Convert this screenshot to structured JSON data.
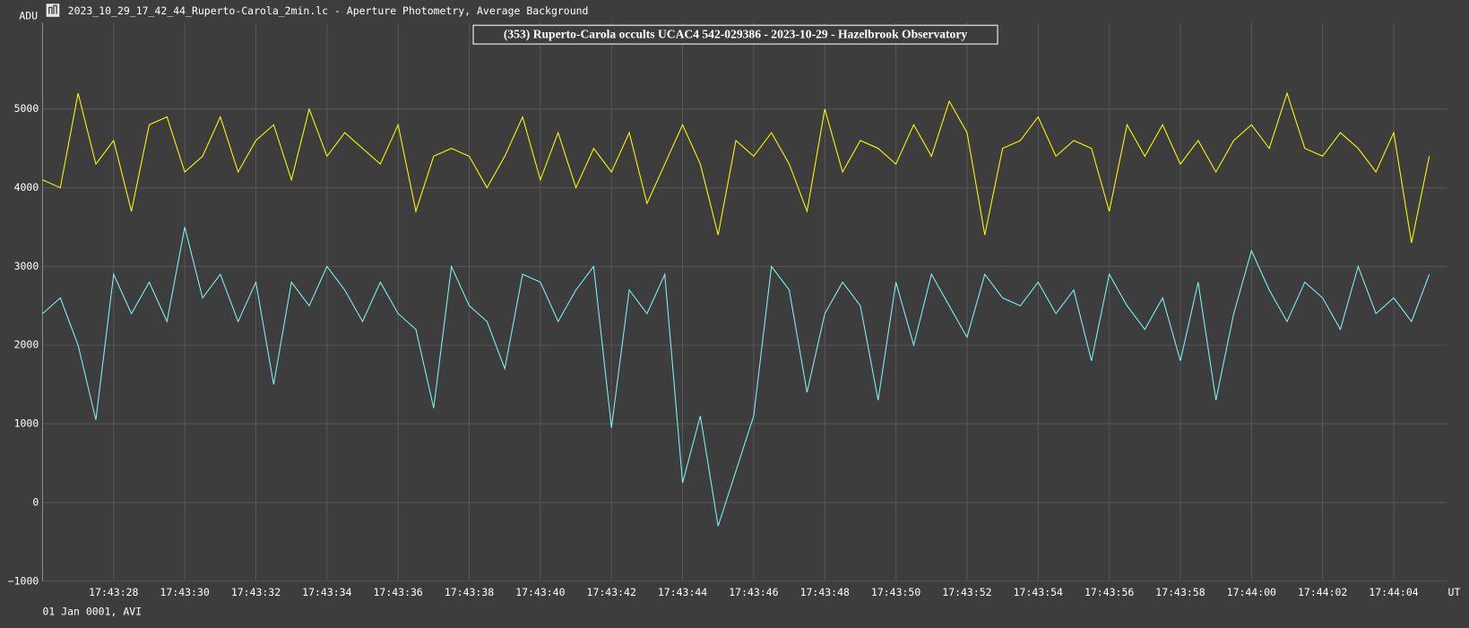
{
  "window_title": "2023_10_29_17_42_44_Ruperto-Carola_2min.lc - Aperture Photometry, Average Background",
  "footer": "01 Jan 0001, AVI",
  "chart_data": {
    "type": "line",
    "title": "(353) Ruperto-Carola occults UCAC4 542-029386 - 2023-10-29 - Hazelbrook Observatory",
    "y_label": "ADU",
    "x_label": "UT",
    "grid": true,
    "xlim": [
      26,
      65.5
    ],
    "ylim": [
      -1000,
      6100
    ],
    "yticks": [
      {
        "value": -1000,
        "label": "−1000"
      },
      0,
      1000,
      2000,
      3000,
      4000,
      5000
    ],
    "xticks": [
      {
        "value": 28,
        "label": "17:43:28"
      },
      {
        "value": 30,
        "label": "17:43:30"
      },
      {
        "value": 32,
        "label": "17:43:32"
      },
      {
        "value": 34,
        "label": "17:43:34"
      },
      {
        "value": 36,
        "label": "17:43:36"
      },
      {
        "value": 38,
        "label": "17:43:38"
      },
      {
        "value": 40,
        "label": "17:43:40"
      },
      {
        "value": 42,
        "label": "17:43:42"
      },
      {
        "value": 44,
        "label": "17:43:44"
      },
      {
        "value": 46,
        "label": "17:43:46"
      },
      {
        "value": 48,
        "label": "17:43:48"
      },
      {
        "value": 50,
        "label": "17:43:50"
      },
      {
        "value": 52,
        "label": "17:43:52"
      },
      {
        "value": 54,
        "label": "17:43:54"
      },
      {
        "value": 56,
        "label": "17:43:56"
      },
      {
        "value": 58,
        "label": "17:43:58"
      },
      {
        "value": 60,
        "label": "17:44:00"
      },
      {
        "value": 62,
        "label": "17:44:02"
      },
      {
        "value": 64,
        "label": "17:44:04"
      }
    ],
    "x": [
      26,
      26.5,
      27,
      27.5,
      28,
      28.5,
      29,
      29.5,
      30,
      30.5,
      31,
      31.5,
      32,
      32.5,
      33,
      33.5,
      34,
      34.5,
      35,
      35.5,
      36,
      36.5,
      37,
      37.5,
      38,
      38.5,
      39,
      39.5,
      40,
      40.5,
      41,
      41.5,
      42,
      42.5,
      43,
      43.5,
      44,
      44.5,
      45,
      45.5,
      46,
      46.5,
      47,
      47.5,
      48,
      48.5,
      49,
      49.5,
      50,
      50.5,
      51,
      51.5,
      52,
      52.5,
      53,
      53.5,
      54,
      54.5,
      55,
      55.5,
      56,
      56.5,
      57,
      57.5,
      58,
      58.5,
      59,
      59.5,
      60,
      60.5,
      61,
      61.5,
      62,
      62.5,
      63,
      63.5,
      64,
      64.5,
      65
    ],
    "series": [
      {
        "color": "#ffff00",
        "values": [
          4100,
          4000,
          5200,
          4300,
          4600,
          3700,
          4800,
          4900,
          4200,
          4400,
          4900,
          4200,
          4600,
          4800,
          4100,
          5000,
          4400,
          4700,
          4500,
          4300,
          4800,
          3700,
          4400,
          4500,
          4400,
          4000,
          4400,
          4900,
          4100,
          4700,
          4000,
          4500,
          4200,
          4700,
          3800,
          4300,
          4800,
          4300,
          3400,
          4600,
          4400,
          4700,
          4300,
          3700,
          5000,
          4200,
          4600,
          4500,
          4300,
          4800,
          4400,
          5100,
          4700,
          3400,
          4500,
          4600,
          4900,
          4400,
          4600,
          4500,
          3700,
          4800,
          4400,
          4800,
          4300,
          4600,
          4200,
          4600,
          4800,
          4500,
          5200,
          4500,
          4400,
          4700,
          4500,
          4200,
          4700,
          3300,
          4400
        ]
      },
      {
        "color": "#7ff5f5",
        "values": [
          2400,
          2600,
          2000,
          1050,
          2900,
          2400,
          2800,
          2300,
          3500,
          2600,
          2900,
          2300,
          2800,
          1500,
          2800,
          2500,
          3000,
          2700,
          2300,
          2800,
          2400,
          2200,
          1200,
          3000,
          2500,
          2300,
          1700,
          2900,
          2800,
          2300,
          2700,
          3000,
          950,
          2700,
          2400,
          2900,
          250,
          1100,
          -300,
          400,
          1100,
          3000,
          2700,
          1400,
          2400,
          2800,
          2500,
          1300,
          2800,
          2000,
          2900,
          2500,
          2100,
          2900,
          2600,
          2500,
          2800,
          2400,
          2700,
          1800,
          2900,
          2500,
          2200,
          2600,
          1800,
          2800,
          1300,
          2400,
          3200,
          2700,
          2300,
          2800,
          2600,
          2200,
          3000,
          2400,
          2600,
          2300,
          2900
        ]
      }
    ]
  }
}
